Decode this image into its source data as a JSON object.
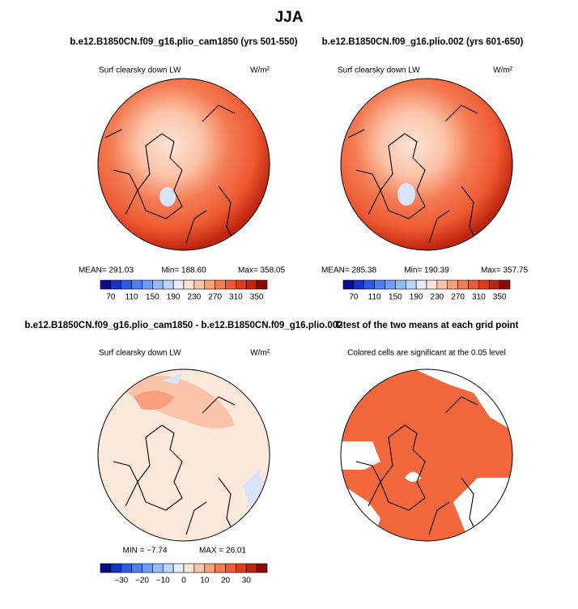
{
  "title": "JJA",
  "panels": [
    {
      "title": "b.e12.B1850CN.f09_g16.plio_cam1850 (yrs 501-550)",
      "variable": "Surf clearsky down LW",
      "units": "W/m²",
      "stats": [
        "MEAN= 291.03",
        "Min= 188.60",
        "Max= 358.05"
      ],
      "colorbar": {
        "labels": [
          "70",
          "110",
          "150",
          "190",
          "230",
          "270",
          "310",
          "350"
        ],
        "colors": [
          "#0a0a8c",
          "#1432c3",
          "#2d5ae6",
          "#4b7ef0",
          "#6e9cf5",
          "#94baf8",
          "#bcd4fb",
          "#e4eefd",
          "#fde4d6",
          "#fbc4a8",
          "#f8a07c",
          "#f47c54",
          "#ee5a32",
          "#e03c1c",
          "#c0240e",
          "#8c0a04"
        ]
      }
    },
    {
      "title": "b.e12.B1850CN.f09_g16.plio.002 (yrs 601-650)",
      "variable": "Surf clearsky down LW",
      "units": "W/m²",
      "stats": [
        "MEAN= 285.38",
        "Min= 190.39",
        "Max= 357.75"
      ],
      "colorbar": {
        "labels": [
          "70",
          "110",
          "150",
          "190",
          "230",
          "270",
          "310",
          "350"
        ],
        "colors": [
          "#0a0a8c",
          "#1432c3",
          "#2d5ae6",
          "#4b7ef0",
          "#6e9cf5",
          "#94baf8",
          "#bcd4fb",
          "#e4eefd",
          "#fde4d6",
          "#fbc4a8",
          "#f8a07c",
          "#f47c54",
          "#ee5a32",
          "#e03c1c",
          "#c0240e",
          "#8c0a04"
        ]
      }
    },
    {
      "title": "b.e12.B1850CN.f09_g16.plio_cam1850 - b.e12.B1850CN.f09_g16.plio.002",
      "variable": "Surf clearsky down LW",
      "units": "W/m²",
      "stats": [
        "MIN = −7.74",
        "MAX = 26.01"
      ],
      "colorbar": {
        "labels": [
          "−30",
          "−20",
          "−10",
          "0",
          "10",
          "20",
          "30"
        ],
        "colors": [
          "#0a0a8c",
          "#1432c3",
          "#2d5ae6",
          "#4b7ef0",
          "#6e9cf5",
          "#94baf8",
          "#bcd4fb",
          "#e4eefd",
          "#fde4d6",
          "#fbc4a8",
          "#f8a07c",
          "#f47c54",
          "#ee5a32",
          "#e03c1c",
          "#c0240e",
          "#8c0a04"
        ]
      }
    },
    {
      "title": "T-test of the two means at each grid point",
      "subtitle": "Colored cells are significant at the 0.05 level"
    }
  ]
}
